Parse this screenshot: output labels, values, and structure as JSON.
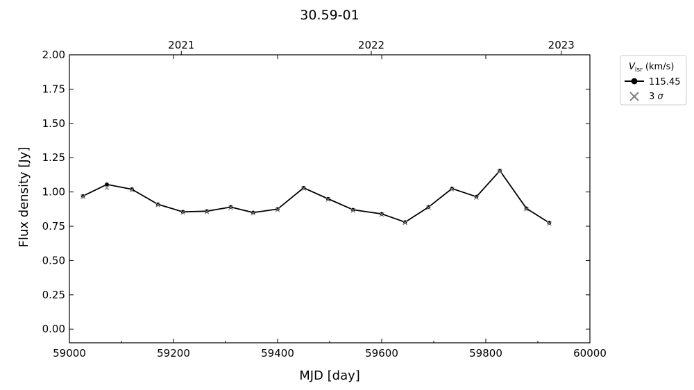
{
  "chart_data": {
    "type": "line",
    "title": "30.59-01",
    "xlabel": "MJD [day]",
    "ylabel": "Flux density [Jy]",
    "xlim": [
      59000,
      60000
    ],
    "ylim": [
      -0.1,
      2.0
    ],
    "x_ticks": [
      59000,
      59200,
      59400,
      59600,
      59800,
      60000
    ],
    "x_tick_labels": [
      "59000",
      "59200",
      "59400",
      "59600",
      "59800",
      "60000"
    ],
    "y_ticks": [
      0.0,
      0.25,
      0.5,
      0.75,
      1.0,
      1.25,
      1.5,
      1.75,
      2.0
    ],
    "y_tick_labels": [
      "0.00",
      "0.25",
      "0.50",
      "0.75",
      "1.00",
      "1.25",
      "1.50",
      "1.75",
      "2.00"
    ],
    "top_axis_ticks": [
      59215,
      59580,
      59945
    ],
    "top_axis_labels": [
      "2021",
      "2022",
      "2023"
    ],
    "grid": false,
    "legend": {
      "placement": "outside-top-right",
      "title_main": "V",
      "title_sub": "lsr",
      "title_suffix": " (km/s)",
      "entries": [
        "115.45",
        "3 σ"
      ],
      "sigma_prefix": "3 ",
      "sigma_symbol": "σ"
    },
    "series": [
      {
        "name": "115.45",
        "color": "#000000",
        "marker": "circle",
        "x": [
          59026,
          59072,
          59120,
          59170,
          59218,
          59264,
          59310,
          59353,
          59400,
          59450,
          59497,
          59545,
          59600,
          59645,
          59690,
          59735,
          59782,
          59827,
          59878,
          59922
        ],
        "y": [
          0.97,
          1.055,
          1.02,
          0.91,
          0.855,
          0.86,
          0.89,
          0.85,
          0.875,
          1.03,
          0.95,
          0.87,
          0.84,
          0.78,
          0.89,
          1.025,
          0.965,
          1.155,
          0.88,
          0.775
        ]
      },
      {
        "name": "3 σ",
        "color": "#808080",
        "marker": "x",
        "x": [
          59026,
          59072,
          59120,
          59170,
          59218,
          59264,
          59310,
          59353,
          59400,
          59450,
          59497,
          59545,
          59600,
          59645,
          59690,
          59735,
          59782,
          59827,
          59878,
          59922
        ],
        "y": [
          0.965,
          1.03,
          1.015,
          0.905,
          0.85,
          0.855,
          0.885,
          0.845,
          0.87,
          1.025,
          0.945,
          0.865,
          0.835,
          0.775,
          0.885,
          1.02,
          0.96,
          1.15,
          0.875,
          0.77
        ]
      }
    ]
  }
}
